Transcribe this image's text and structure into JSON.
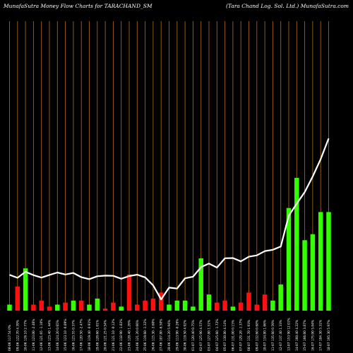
{
  "header": {
    "left": "MunafaSutra  Money Flow  Charts for TARACHAND_SM",
    "right": "(Tara  Chand Log. Sol. Ltd.) MunafaSutra.com"
  },
  "colors": {
    "background": "#000000",
    "gridline": "#a0621a",
    "up": "#33ff00",
    "down": "#ff1010",
    "line": "#ffffff",
    "text": "#ffffff"
  },
  "chart_data": {
    "type": "bar",
    "title": "",
    "ylabel": "",
    "grid": true,
    "categories": [
      "08-06 117.54 0%",
      "09-06 122.70 4.39%",
      "10-06 126.10 2.77%",
      "11-06 123.00 -2.46%",
      "12-06 121.65 -1.10%",
      "13-06 123.40 1.44%",
      "14-06 124.20 0.65%",
      "15-06 123.10 -0.89%",
      "16-06 123.55 0.37%",
      "17-06 120.50 -2.47%",
      "18-06 119.40 -0.91%",
      "19-06 120.60 1.01%",
      "20-06 121.25 0.54%",
      "21-06 121.10 -0.12%",
      "22-06 118.90 -1.82%",
      "23-06 120.40 1.26%",
      "24-06 121.20 0.66%",
      "25-06 119.60 -1.32%",
      "26-06 115.30 -3.60%",
      "27-06 107.80 -6.50%",
      "28-06 114.20 5.94%",
      "29-06 113.90 -0.26%",
      "30-06 119.50 4.92%",
      "01-07 120.40 0.75%",
      "02-07 125.90 4.57%",
      "03-07 127.80 1.51%",
      "04-07 125.60 -1.72%",
      "05-07 130.80 4.14%",
      "06-07 131.00 0.15%",
      "07-07 129.20 -1.37%",
      "08-07 131.70 1.93%",
      "09-07 132.60 0.68%",
      "10-07 134.80 1.66%",
      "11-07 135.60 0.59%",
      "12-07 137.40 1.33%",
      "13-07 153.90 12.01%",
      "14-07 160.40 4.22%",
      "15-07 166.60 3.87%",
      "16-07 175.00 5.04%",
      "17-07 184.30 5.31%",
      "18-07 195.30 5.97%"
    ],
    "flow_direction": [
      "up",
      "down",
      "up",
      "down",
      "down",
      "down",
      "up",
      "down",
      "up",
      "down",
      "up",
      "up",
      "down",
      "down",
      "up",
      "down",
      "down",
      "down",
      "down",
      "down",
      "up",
      "up",
      "up",
      "up",
      "up",
      "up",
      "down",
      "down",
      "up",
      "down",
      "down",
      "down",
      "down",
      "up",
      "up",
      "up",
      "up",
      "up",
      "up",
      "up",
      "up"
    ],
    "values": [
      3,
      12,
      21,
      3,
      5,
      2,
      3,
      4,
      5,
      5,
      3,
      6,
      1,
      4,
      2,
      18,
      3,
      5,
      6,
      9,
      3,
      5,
      5,
      2,
      26,
      8,
      4,
      5,
      2,
      4,
      9,
      3,
      8,
      5,
      13,
      51,
      66,
      35,
      38,
      49,
      49
    ],
    "price": [
      117.54,
      116.2,
      118.9,
      117.4,
      116.3,
      117.5,
      118.6,
      117.7,
      118.4,
      116.5,
      115.6,
      116.9,
      117.2,
      117.1,
      115.8,
      117.0,
      117.6,
      116.4,
      112.8,
      106.5,
      111.8,
      111.4,
      116.0,
      116.7,
      121.0,
      122.6,
      120.8,
      125.0,
      125.1,
      123.6,
      125.7,
      126.3,
      128.2,
      128.8,
      130.3,
      144.1,
      149.5,
      154.7,
      161.7,
      169.5,
      178.8
    ]
  }
}
